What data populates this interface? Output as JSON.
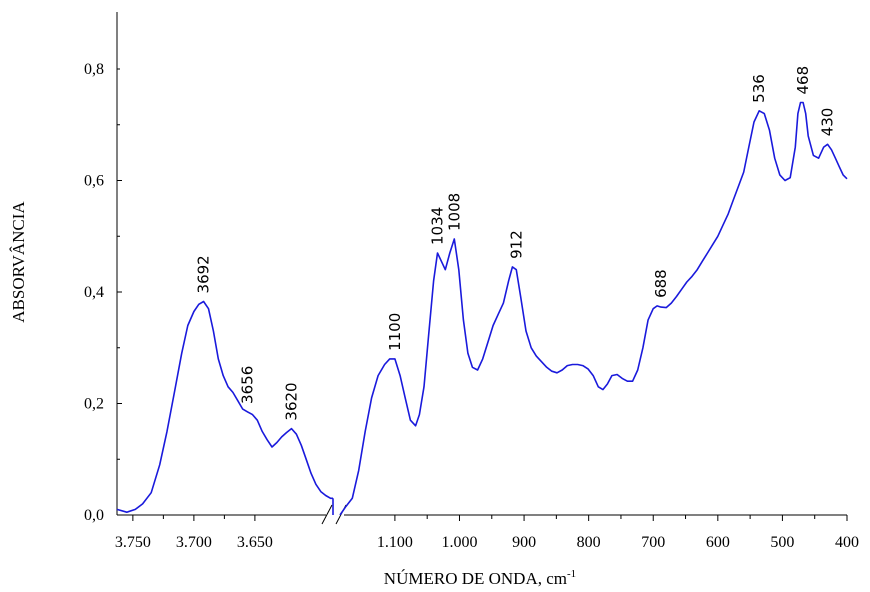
{
  "chart_data": {
    "type": "line",
    "title": "",
    "xlabel": "NÚMERO DE ONDA, cm",
    "xlabel_superscript": "-1",
    "ylabel": "ABSORVÂNCIA",
    "ylim": [
      0,
      0.88
    ],
    "yticks": [
      {
        "value": 0,
        "label": "0,0"
      },
      {
        "value": 0.2,
        "label": "0,2"
      },
      {
        "value": 0.4,
        "label": "0,4"
      },
      {
        "value": 0.6,
        "label": "0,6"
      },
      {
        "value": 0.8,
        "label": "0,8"
      }
    ],
    "x_axis_broken": true,
    "segments": [
      {
        "name": "high-wavenumber",
        "xlim": [
          3763,
          3586
        ],
        "xticks": [
          {
            "value": 3750,
            "label": "3.750"
          },
          {
            "value": 3700,
            "label": "3.700"
          },
          {
            "value": 3650,
            "label": "3.650"
          }
        ],
        "x": [
          3763,
          3755,
          3748,
          3742,
          3735,
          3728,
          3722,
          3716,
          3710,
          3705,
          3700,
          3696,
          3692,
          3688,
          3684,
          3680,
          3676,
          3672,
          3668,
          3664,
          3660,
          3656,
          3652,
          3648,
          3644,
          3640,
          3636,
          3632,
          3628,
          3624,
          3620,
          3616,
          3612,
          3608,
          3604,
          3600,
          3596,
          3592,
          3588,
          3586
        ],
        "y": [
          0.01,
          0.005,
          0.01,
          0.02,
          0.04,
          0.09,
          0.15,
          0.22,
          0.29,
          0.34,
          0.365,
          0.378,
          0.383,
          0.37,
          0.33,
          0.28,
          0.25,
          0.23,
          0.22,
          0.205,
          0.19,
          0.185,
          0.18,
          0.17,
          0.15,
          0.135,
          0.122,
          0.13,
          0.14,
          0.148,
          0.155,
          0.145,
          0.125,
          0.1,
          0.075,
          0.055,
          0.042,
          0.035,
          0.03,
          0.03
        ]
      },
      {
        "name": "fingerprint",
        "xlim": [
          1185,
          400
        ],
        "xticks": [
          {
            "value": 1100,
            "label": "1.100"
          },
          {
            "value": 1000,
            "label": "1.000"
          },
          {
            "value": 900,
            "label": "900"
          },
          {
            "value": 800,
            "label": "800"
          },
          {
            "value": 700,
            "label": "700"
          },
          {
            "value": 600,
            "label": "600"
          },
          {
            "value": 500,
            "label": "500"
          },
          {
            "value": 400,
            "label": "400"
          }
        ],
        "x": [
          1185,
          1176,
          1166,
          1156,
          1146,
          1136,
          1126,
          1116,
          1108,
          1100,
          1092,
          1084,
          1076,
          1068,
          1062,
          1055,
          1048,
          1040,
          1034,
          1028,
          1022,
          1015,
          1008,
          1001,
          994,
          987,
          980,
          972,
          964,
          956,
          948,
          940,
          932,
          924,
          918,
          912,
          905,
          897,
          889,
          881,
          873,
          865,
          857,
          849,
          841,
          833,
          825,
          817,
          809,
          801,
          793,
          785,
          778,
          771,
          764,
          756,
          748,
          740,
          732,
          724,
          716,
          708,
          700,
          694,
          688,
          680,
          672,
          664,
          656,
          648,
          640,
          632,
          624,
          616,
          608,
          600,
          592,
          584,
          576,
          568,
          560,
          552,
          544,
          536,
          528,
          520,
          512,
          504,
          496,
          488,
          480,
          476,
          472,
          468,
          464,
          460,
          452,
          444,
          436,
          430,
          424,
          418,
          412,
          406,
          400
        ],
        "y": [
          0.0,
          0.015,
          0.03,
          0.08,
          0.15,
          0.21,
          0.25,
          0.27,
          0.28,
          0.28,
          0.25,
          0.21,
          0.17,
          0.16,
          0.18,
          0.23,
          0.32,
          0.42,
          0.47,
          0.455,
          0.44,
          0.47,
          0.495,
          0.44,
          0.35,
          0.29,
          0.265,
          0.26,
          0.28,
          0.31,
          0.34,
          0.36,
          0.38,
          0.42,
          0.445,
          0.44,
          0.39,
          0.33,
          0.3,
          0.285,
          0.275,
          0.265,
          0.258,
          0.255,
          0.26,
          0.268,
          0.27,
          0.27,
          0.268,
          0.262,
          0.25,
          0.23,
          0.225,
          0.235,
          0.25,
          0.252,
          0.245,
          0.24,
          0.24,
          0.26,
          0.3,
          0.35,
          0.37,
          0.375,
          0.373,
          0.372,
          0.38,
          0.392,
          0.405,
          0.418,
          0.428,
          0.44,
          0.455,
          0.47,
          0.485,
          0.5,
          0.52,
          0.54,
          0.565,
          0.59,
          0.615,
          0.66,
          0.705,
          0.725,
          0.72,
          0.69,
          0.64,
          0.61,
          0.6,
          0.605,
          0.66,
          0.72,
          0.74,
          0.74,
          0.72,
          0.68,
          0.645,
          0.64,
          0.66,
          0.665,
          0.655,
          0.64,
          0.625,
          0.61,
          0.603
        ]
      }
    ],
    "annotations": [
      {
        "label": "3692",
        "x": 3692,
        "y": 0.383,
        "segment": 0
      },
      {
        "label": "3656",
        "x": 3656,
        "y": 0.185,
        "segment": 0
      },
      {
        "label": "3620",
        "x": 3620,
        "y": 0.155,
        "segment": 0
      },
      {
        "label": "1100",
        "x": 1100,
        "y": 0.28,
        "segment": 1
      },
      {
        "label": "1034",
        "x": 1034,
        "y": 0.47,
        "segment": 1
      },
      {
        "label": "1008",
        "x": 1008,
        "y": 0.495,
        "segment": 1
      },
      {
        "label": "912",
        "x": 912,
        "y": 0.445,
        "segment": 1
      },
      {
        "label": "688",
        "x": 688,
        "y": 0.375,
        "segment": 1
      },
      {
        "label": "536",
        "x": 536,
        "y": 0.725,
        "segment": 1
      },
      {
        "label": "468",
        "x": 468,
        "y": 0.74,
        "segment": 1
      },
      {
        "label": "430",
        "x": 430,
        "y": 0.665,
        "segment": 1
      }
    ],
    "colors": {
      "line": "#1a1adc",
      "axis": "#000000"
    }
  }
}
